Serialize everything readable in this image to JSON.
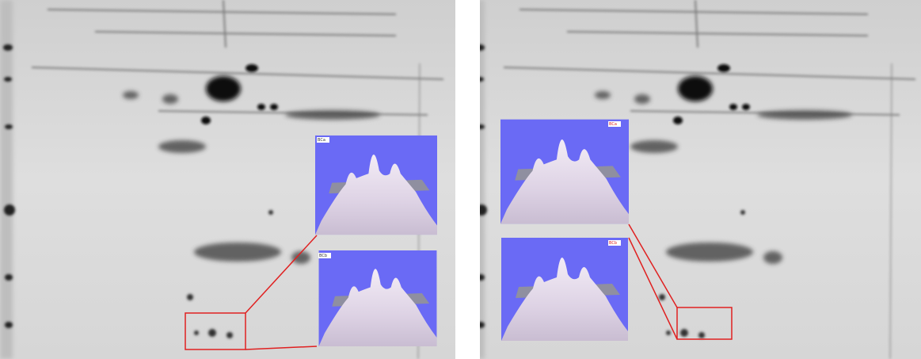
{
  "panels": [
    {
      "insets": [
        {
          "label": "BCa"
        },
        {
          "label": "BCb"
        }
      ]
    },
    {
      "insets": [
        {
          "label": "BCa"
        },
        {
          "label": "BCb"
        }
      ]
    }
  ]
}
